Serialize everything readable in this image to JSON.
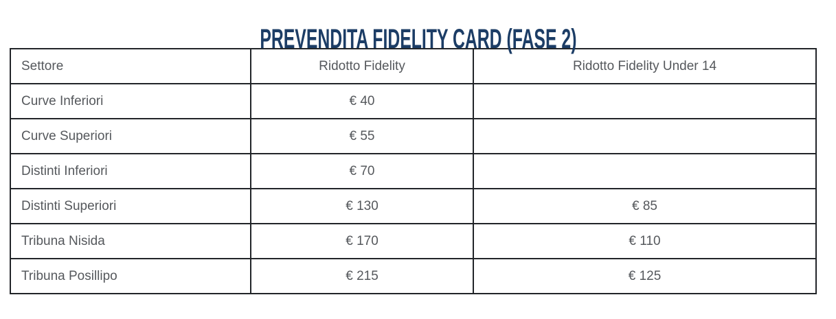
{
  "page": {
    "title": "PREVENDITA FIDELITY CARD (FASE 2)",
    "title_color": "#1c3d66"
  },
  "table": {
    "border_color": "#212428",
    "text_color": "#55585c",
    "columns": [
      "Settore",
      "Ridotto Fidelity",
      "Ridotto Fidelity Under 14"
    ],
    "rows": [
      [
        "Curve Inferiori",
        "€ 40",
        ""
      ],
      [
        "Curve Superiori",
        "€ 55",
        ""
      ],
      [
        "Distinti Inferiori",
        "€ 70",
        ""
      ],
      [
        "Distinti Superiori",
        "€ 130",
        "€ 85"
      ],
      [
        "Tribuna Nisida",
        "€ 170",
        "€ 110"
      ],
      [
        "Tribuna Posillipo",
        "€ 215",
        "€ 125"
      ]
    ]
  },
  "chart_data": {
    "type": "table",
    "title": "PREVENDITA FIDELITY CARD (FASE 2)",
    "columns": [
      "Settore",
      "Ridotto Fidelity",
      "Ridotto Fidelity Under 14"
    ],
    "rows": [
      {
        "settore": "Curve Inferiori",
        "ridotto_fidelity_eur": 40,
        "ridotto_fidelity_under_14_eur": null
      },
      {
        "settore": "Curve Superiori",
        "ridotto_fidelity_eur": 55,
        "ridotto_fidelity_under_14_eur": null
      },
      {
        "settore": "Distinti Inferiori",
        "ridotto_fidelity_eur": 70,
        "ridotto_fidelity_under_14_eur": null
      },
      {
        "settore": "Distinti Superiori",
        "ridotto_fidelity_eur": 130,
        "ridotto_fidelity_under_14_eur": 85
      },
      {
        "settore": "Tribuna Nisida",
        "ridotto_fidelity_eur": 170,
        "ridotto_fidelity_under_14_eur": 110
      },
      {
        "settore": "Tribuna Posillipo",
        "ridotto_fidelity_eur": 215,
        "ridotto_fidelity_under_14_eur": 125
      }
    ]
  }
}
